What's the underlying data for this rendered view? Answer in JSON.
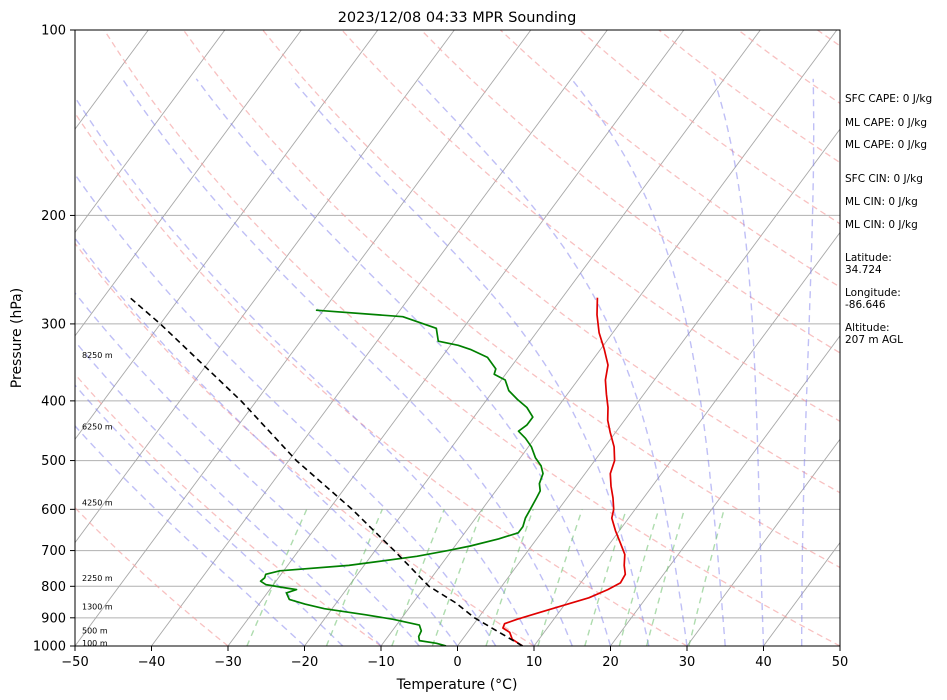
{
  "chart_data": {
    "type": "line",
    "title": "2023/12/08 04:33 MPR Sounding",
    "xlabel": "Temperature (°C)",
    "ylabel": "Pressure (hPa)",
    "xlim": [
      -50,
      50
    ],
    "ylim": [
      1000,
      100
    ],
    "y_scale": "log",
    "xticks": [
      -50,
      -40,
      -30,
      -20,
      -10,
      0,
      10,
      20,
      30,
      40,
      50
    ],
    "yticks": [
      1000,
      900,
      800,
      700,
      600,
      500,
      400,
      300,
      200,
      100
    ],
    "grid": true,
    "series": [
      {
        "color": "#e00000",
        "style": "solid",
        "values": [
          {
            "p": 1000,
            "t": 8.5
          },
          {
            "p": 975,
            "t": 6.5
          },
          {
            "p": 950,
            "t": 5.5
          },
          {
            "p": 935,
            "t": 4.2
          },
          {
            "p": 920,
            "t": 4.0
          },
          {
            "p": 905,
            "t": 5.2
          },
          {
            "p": 885,
            "t": 7.2
          },
          {
            "p": 860,
            "t": 9.8
          },
          {
            "p": 835,
            "t": 12.5
          },
          {
            "p": 810,
            "t": 14.2
          },
          {
            "p": 790,
            "t": 15.2
          },
          {
            "p": 765,
            "t": 15.0
          },
          {
            "p": 740,
            "t": 14.0
          },
          {
            "p": 710,
            "t": 13.0
          },
          {
            "p": 680,
            "t": 11.3
          },
          {
            "p": 650,
            "t": 9.5
          },
          {
            "p": 620,
            "t": 7.8
          },
          {
            "p": 600,
            "t": 7.2
          },
          {
            "p": 575,
            "t": 6.0
          },
          {
            "p": 550,
            "t": 4.6
          },
          {
            "p": 525,
            "t": 3.3
          },
          {
            "p": 500,
            "t": 2.6
          },
          {
            "p": 475,
            "t": 1.2
          },
          {
            "p": 450,
            "t": -0.7
          },
          {
            "p": 430,
            "t": -2.2
          },
          {
            "p": 410,
            "t": -3.4
          },
          {
            "p": 390,
            "t": -4.9
          },
          {
            "p": 370,
            "t": -6.4
          },
          {
            "p": 350,
            "t": -7.5
          },
          {
            "p": 330,
            "t": -9.5
          },
          {
            "p": 310,
            "t": -11.8
          },
          {
            "p": 290,
            "t": -13.8
          },
          {
            "p": 272,
            "t": -15.4
          }
        ]
      },
      {
        "color": "#008000",
        "style": "solid",
        "values": [
          {
            "p": 1000,
            "t": -1.5
          },
          {
            "p": 990,
            "t": -3.0
          },
          {
            "p": 980,
            "t": -5.5
          },
          {
            "p": 965,
            "t": -6.0
          },
          {
            "p": 945,
            "t": -6.2
          },
          {
            "p": 925,
            "t": -7.0
          },
          {
            "p": 905,
            "t": -11.0
          },
          {
            "p": 890,
            "t": -15.0
          },
          {
            "p": 870,
            "t": -21.0
          },
          {
            "p": 855,
            "t": -24.0
          },
          {
            "p": 840,
            "t": -26.5
          },
          {
            "p": 820,
            "t": -27.5
          },
          {
            "p": 810,
            "t": -26.5
          },
          {
            "p": 805,
            "t": -28.0
          },
          {
            "p": 795,
            "t": -31.0
          },
          {
            "p": 785,
            "t": -32.0
          },
          {
            "p": 775,
            "t": -31.8
          },
          {
            "p": 765,
            "t": -32.0
          },
          {
            "p": 755,
            "t": -30.5
          },
          {
            "p": 740,
            "t": -22.0
          },
          {
            "p": 715,
            "t": -14.0
          },
          {
            "p": 700,
            "t": -10.5
          },
          {
            "p": 688,
            "t": -8.0
          },
          {
            "p": 670,
            "t": -5.0
          },
          {
            "p": 655,
            "t": -3.0
          },
          {
            "p": 640,
            "t": -3.0
          },
          {
            "p": 620,
            "t": -3.5
          },
          {
            "p": 600,
            "t": -3.7
          },
          {
            "p": 575,
            "t": -4.0
          },
          {
            "p": 560,
            "t": -4.2
          },
          {
            "p": 545,
            "t": -5.0
          },
          {
            "p": 525,
            "t": -5.5
          },
          {
            "p": 510,
            "t": -6.5
          },
          {
            "p": 495,
            "t": -8.0
          },
          {
            "p": 475,
            "t": -9.6
          },
          {
            "p": 460,
            "t": -11.2
          },
          {
            "p": 448,
            "t": -12.8
          },
          {
            "p": 438,
            "t": -12.3
          },
          {
            "p": 425,
            "t": -12.3
          },
          {
            "p": 410,
            "t": -14.0
          },
          {
            "p": 398,
            "t": -16.0
          },
          {
            "p": 385,
            "t": -18.0
          },
          {
            "p": 370,
            "t": -19.5
          },
          {
            "p": 362,
            "t": -21.5
          },
          {
            "p": 355,
            "t": -21.8
          },
          {
            "p": 340,
            "t": -24.0
          },
          {
            "p": 330,
            "t": -27.0
          },
          {
            "p": 325,
            "t": -29.0
          },
          {
            "p": 320,
            "t": -32.0
          },
          {
            "p": 305,
            "t": -33.5
          },
          {
            "p": 292,
            "t": -39.0
          },
          {
            "p": 285,
            "t": -51.0
          }
        ]
      },
      {
        "color": "#000000",
        "style": "dashed",
        "values": [
          {
            "p": 1000,
            "t": 8.5
          },
          {
            "p": 900,
            "t": -0.5
          },
          {
            "p": 850,
            "t": -4.5
          },
          {
            "p": 800,
            "t": -9.5
          },
          {
            "p": 700,
            "t": -17.5
          },
          {
            "p": 600,
            "t": -27.0
          },
          {
            "p": 500,
            "t": -39.0
          },
          {
            "p": 400,
            "t": -52.0
          },
          {
            "p": 300,
            "t": -70.0
          },
          {
            "p": 270,
            "t": -77.0
          }
        ]
      }
    ],
    "height_labels": [
      {
        "p": 988,
        "text": "100 m"
      },
      {
        "p": 944,
        "text": "500 m"
      },
      {
        "p": 863,
        "text": "1300 m"
      },
      {
        "p": 775,
        "text": "2250 m"
      },
      {
        "p": 585,
        "text": "4250 m"
      },
      {
        "p": 440,
        "text": "6250 m"
      },
      {
        "p": 337,
        "text": "8250 m"
      }
    ],
    "annotations": [
      "SFC CAPE: 0 J/kg",
      "ML CAPE: 0 J/kg",
      "ML CAPE: 0 J/kg",
      "SFC CIN: 0 J/kg",
      "ML CIN: 0 J/kg",
      "ML CIN: 0 J/kg",
      "Latitude:",
      "34.724",
      "Longitude:",
      "-86.646",
      "Altitude:",
      "207 m AGL"
    ]
  }
}
